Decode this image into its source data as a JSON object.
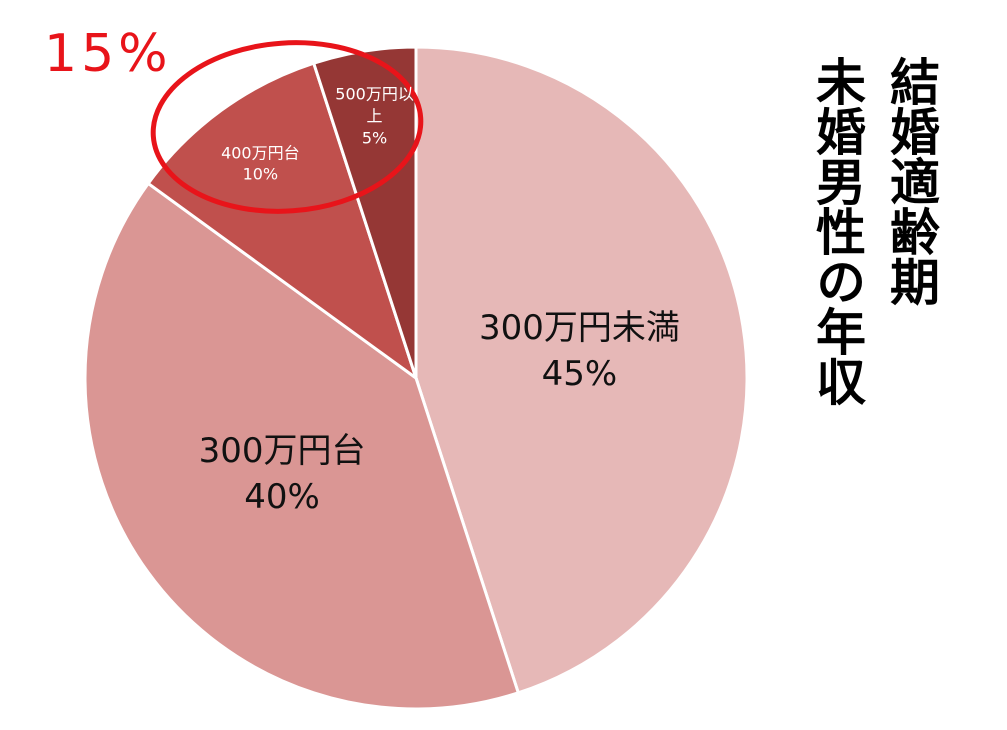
{
  "chart_data": {
    "type": "pie",
    "title": [
      "結婚適齢期",
      "未婚男性の年収"
    ],
    "annotation": "15%",
    "categories": [
      "300万円未満",
      "300万円台",
      "400万円台",
      "500万円以上"
    ],
    "values": [
      45,
      40,
      10,
      5
    ],
    "value_labels": [
      "45%",
      "40%",
      "10%",
      "5%"
    ],
    "colors": [
      "#e6b8b7",
      "#da9694",
      "#c0504d",
      "#953735"
    ]
  }
}
